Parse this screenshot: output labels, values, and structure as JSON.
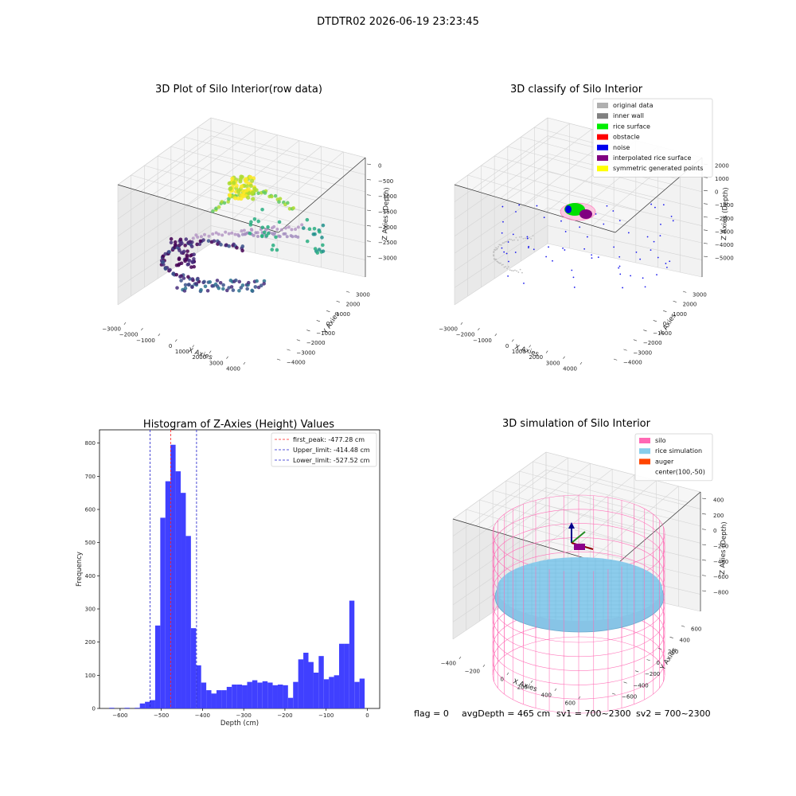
{
  "figure_title": "DTDTR02 2026-06-19 23:23:45",
  "footer": {
    "flag": "flag = 0",
    "avg_depth": "avgDepth = 465 cm",
    "sv1": "sv1 = 700~2300",
    "sv2": "sv2 = 700~2300"
  },
  "chart_data": [
    {
      "type": "scatter",
      "projection": "3d",
      "title": "3D Plot of Silo Interior(row data)",
      "xlabel": "X Axies",
      "ylabel": "Y Axies",
      "zlabel": "Z Axies (Depth)",
      "x_ticks": [
        "−3000",
        "−2000",
        "−1000",
        "0",
        "1000",
        "2000",
        "3000",
        "4000"
      ],
      "y_ticks": [
        "−4000",
        "−3000",
        "−2000",
        "−1000",
        "0",
        "1000",
        "2000",
        "3000"
      ],
      "z_ticks": [
        "−3000",
        "−2500",
        "−2000",
        "−1500",
        "−1000",
        "−500",
        "0"
      ],
      "colormap": "viridis",
      "grid": true
    },
    {
      "type": "scatter",
      "projection": "3d",
      "title": "3D classify of Silo Interior",
      "xlabel": "X Axies",
      "ylabel": "Y Axies",
      "zlabel": "Z Axies (Depth)",
      "x_ticks": [
        "−3000",
        "−2000",
        "−1000",
        "0",
        "1000",
        "2000",
        "3000",
        "4000"
      ],
      "y_ticks": [
        "−4000",
        "−3000",
        "−2000",
        "−1000",
        "0",
        "1000",
        "2000",
        "3000"
      ],
      "z_ticks": [
        "−5000",
        "−4000",
        "−3000",
        "−2000",
        "−1000",
        "0",
        "1000",
        "2000"
      ],
      "legend_position": "top-right",
      "legend": [
        {
          "label": "original data",
          "color": "#b0b0b0"
        },
        {
          "label": "inner wall",
          "color": "#808080"
        },
        {
          "label": "rice surface",
          "color": "#00ee00"
        },
        {
          "label": "obstacle",
          "color": "#ff0000"
        },
        {
          "label": "noise",
          "color": "#0000ee"
        },
        {
          "label": "interpolated rice surface",
          "color": "#800080"
        },
        {
          "label": "symmetric generated points",
          "color": "#ffff00"
        }
      ],
      "grid": true
    },
    {
      "type": "bar",
      "subtype": "histogram",
      "title": "Histogram of Z-Axies (Height) Values",
      "xlabel": "Depth (cm)",
      "ylabel": "Frequency",
      "xlim": [
        -650,
        30
      ],
      "ylim": [
        0,
        840
      ],
      "x_ticks": [
        -600,
        -500,
        -400,
        -300,
        -200,
        -100,
        0
      ],
      "x_tick_labels": [
        "−600",
        "−500",
        "−400",
        "−300",
        "−200",
        "−100",
        "0"
      ],
      "y_ticks": [
        0,
        100,
        200,
        300,
        400,
        500,
        600,
        700,
        800
      ],
      "bin_start": -626.5,
      "bin_width": 12.4,
      "values": [
        2,
        0,
        0,
        2,
        0,
        2,
        15,
        20,
        25,
        250,
        575,
        685,
        795,
        715,
        650,
        520,
        242,
        130,
        78,
        55,
        45,
        55,
        55,
        65,
        72,
        72,
        70,
        80,
        85,
        78,
        82,
        78,
        70,
        72,
        70,
        32,
        80,
        148,
        168,
        140,
        108,
        158,
        88,
        95,
        100,
        195,
        195,
        325,
        80,
        90
      ],
      "bar_color": "#4040ff",
      "reference_lines": [
        {
          "label": "first_peak: -477.28 cm",
          "value": -477.28,
          "color": "#ff2020"
        },
        {
          "label": "Upper_limit: -414.48 cm",
          "value": -414.48,
          "color": "#2020cc"
        },
        {
          "label": "Lower_limit: -527.52 cm",
          "value": -527.52,
          "color": "#2020cc"
        }
      ],
      "legend_position": "top-right"
    },
    {
      "type": "surface",
      "projection": "3d",
      "title": "3D simulation of Silo Interior",
      "xlabel": "X Axies",
      "ylabel": "Y Axies",
      "zlabel": "Z Axies (Depth)",
      "x_ticks": [
        "−400",
        "−200",
        "0",
        "200",
        "400",
        "600"
      ],
      "y_ticks": [
        "−600",
        "−400",
        "−200",
        "0",
        "200",
        "400",
        "600"
      ],
      "z_ticks": [
        "−800",
        "−600",
        "−400",
        "−200",
        "0",
        "200",
        "400"
      ],
      "legend_position": "top-right",
      "legend": [
        {
          "label": "silo",
          "color": "#ff69b4"
        },
        {
          "label": "rice simulation",
          "color": "#87ceeb"
        },
        {
          "label": "auger",
          "color": "#ff4500"
        },
        {
          "label": "center(100,-50)",
          "color": "none"
        }
      ],
      "grid": true
    }
  ]
}
